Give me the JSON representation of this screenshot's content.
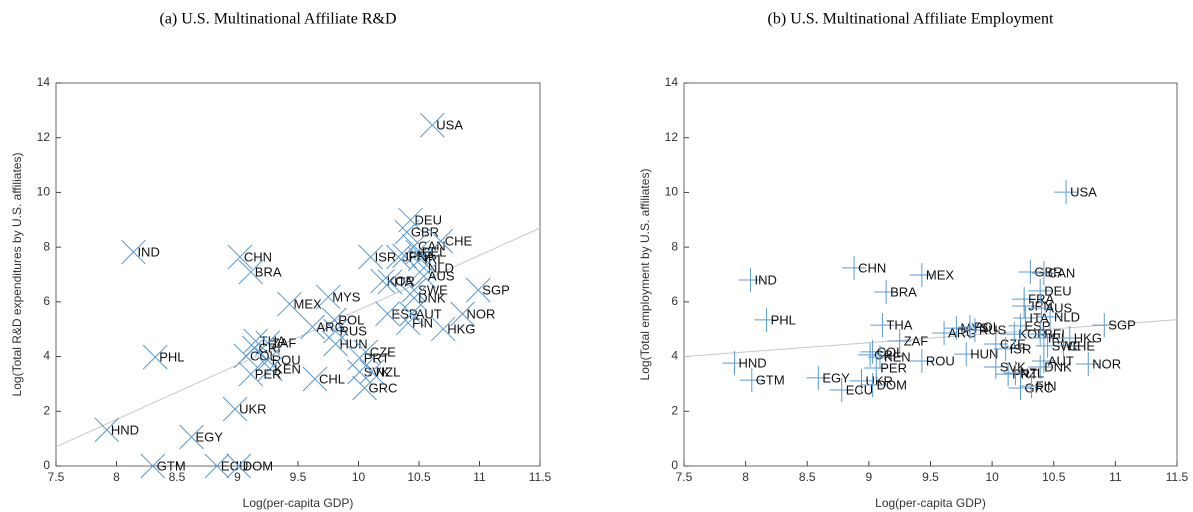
{
  "chart_data": [
    {
      "type": "scatter",
      "title": "(a) U.S. Multinational Affiliate R&D",
      "x_label": "Log(per-capita GDP)",
      "y_label": "Log(Total R&D expenditures by U.S. affiliates)",
      "marker": "x",
      "color": "#5a9ad0",
      "xlim": [
        7.5,
        11.5
      ],
      "xticks": [
        7.5,
        8,
        8.5,
        9,
        9.5,
        10,
        10.5,
        11,
        11.5
      ],
      "ylim": [
        0,
        14
      ],
      "yticks": [
        0,
        2,
        4,
        6,
        8,
        10,
        12,
        14
      ],
      "labels": [
        "USA",
        "IND",
        "CHN",
        "BRA",
        "DEU",
        "GBR",
        "CAN",
        "CHE",
        "BEL",
        "FRA",
        "JPN",
        "ISR",
        "IRL",
        "NLD",
        "AUS",
        "KOR",
        "ITA",
        "SWE",
        "SGP",
        "DNK",
        "MYS",
        "MEX",
        "ESP",
        "AUT",
        "NOR",
        "FIN",
        "HKG",
        "POL",
        "RUS",
        "ARG",
        "THA",
        "ZAF",
        "CRI",
        "HUN",
        "COL",
        "ROU",
        "KEN",
        "PER",
        "CZE",
        "PRT",
        "SVK",
        "NZL",
        "CHL",
        "GRC",
        "PHL",
        "UKR",
        "HND",
        "EGY",
        "GTM",
        "ECU",
        "DOM"
      ],
      "x": [
        10.61,
        8.14,
        9.02,
        9.11,
        10.43,
        10.4,
        10.46,
        10.68,
        10.49,
        10.38,
        10.33,
        10.1,
        10.51,
        10.54,
        10.54,
        10.2,
        10.26,
        10.46,
        10.99,
        10.46,
        9.75,
        9.43,
        10.24,
        10.44,
        10.86,
        10.41,
        10.7,
        9.8,
        9.81,
        9.62,
        9.15,
        9.25,
        9.14,
        9.81,
        9.07,
        9.25,
        9.27,
        9.11,
        10.06,
        10.01,
        10.01,
        10.11,
        9.64,
        10.05,
        8.32,
        8.98,
        7.92,
        8.62,
        8.3,
        8.83,
        9.01
      ],
      "values": [
        12.46,
        7.82,
        7.64,
        7.09,
        8.99,
        8.55,
        8.04,
        8.22,
        7.82,
        7.68,
        7.64,
        7.64,
        7.57,
        7.24,
        6.94,
        6.76,
        6.73,
        6.43,
        6.43,
        6.14,
        6.18,
        5.92,
        5.56,
        5.56,
        5.56,
        5.23,
        5.01,
        5.34,
        4.93,
        5.08,
        4.57,
        4.5,
        4.31,
        4.46,
        4.02,
        3.87,
        3.55,
        3.36,
        4.17,
        3.95,
        3.44,
        3.44,
        3.18,
        2.85,
        3.98,
        2.08,
        1.32,
        1.06,
        0,
        0,
        0
      ],
      "trend": {
        "x": [
          7.5,
          11.5
        ],
        "y": [
          0.7,
          8.7
        ]
      }
    },
    {
      "type": "scatter",
      "title": "(b) U.S. Multinational Affiliate Employment",
      "x_label": "Log(per-capita GDP)",
      "y_label": "Log(Total employment by U.S. affiliates)",
      "marker": "+",
      "color": "#5a9ad0",
      "xlim": [
        7.5,
        11.5
      ],
      "xticks": [
        7.5,
        8,
        8.5,
        9,
        9.5,
        10,
        10.5,
        11,
        11.5
      ],
      "ylim": [
        0,
        14
      ],
      "yticks": [
        0,
        2,
        4,
        6,
        8,
        10,
        12,
        14
      ],
      "labels": [
        "USA",
        "IND",
        "CHN",
        "MEX",
        "BRA",
        "PHL",
        "THA",
        "ZAF",
        "HND",
        "GTM",
        "EGY",
        "UKR",
        "ECU",
        "DOM",
        "COL",
        "CRI",
        "PER",
        "KEN",
        "ROU",
        "ARG",
        "MYS",
        "POL",
        "RUS",
        "HUN",
        "CZE",
        "ISR",
        "SVK",
        "PRT",
        "NZL",
        "GRC",
        "FIN",
        "KOR",
        "ESP",
        "ITA",
        "JPN",
        "AUS",
        "FRA",
        "DEU",
        "GBR",
        "CAN",
        "NLD",
        "BEL",
        "IRL",
        "HKG",
        "SGP",
        "CHE",
        "SWE",
        "AUT",
        "DNK",
        "NOR"
      ],
      "x": [
        10.6,
        8.04,
        8.88,
        9.43,
        9.14,
        8.17,
        9.11,
        9.25,
        7.91,
        8.05,
        8.59,
        8.94,
        8.78,
        9.03,
        9.03,
        9.01,
        9.06,
        9.09,
        9.43,
        9.61,
        9.71,
        9.82,
        9.86,
        9.79,
        10.03,
        10.11,
        10.03,
        10.13,
        10.19,
        10.23,
        10.32,
        10.18,
        10.23,
        10.27,
        10.26,
        10.4,
        10.26,
        10.39,
        10.31,
        10.42,
        10.47,
        10.39,
        10.42,
        10.63,
        10.91,
        10.58,
        10.45,
        10.42,
        10.39,
        10.78
      ],
      "values": [
        10.01,
        6.8,
        7.24,
        6.98,
        6.36,
        5.34,
        5.15,
        4.57,
        3.76,
        3.14,
        3.22,
        3.11,
        2.78,
        2.96,
        4.17,
        4.06,
        3.58,
        3.98,
        3.84,
        4.86,
        5.04,
        5.08,
        4.97,
        4.09,
        4.46,
        4.28,
        3.62,
        3.36,
        3.4,
        2.85,
        2.92,
        4.82,
        5.12,
        5.41,
        5.85,
        5.77,
        6.1,
        6.4,
        7.09,
        7.05,
        5.45,
        4.82,
        4.68,
        4.68,
        5.15,
        4.39,
        4.39,
        3.84,
        3.62,
        3.73
      ],
      "trend": {
        "x": [
          7.5,
          11.5
        ],
        "y": [
          4.0,
          5.35
        ]
      }
    }
  ]
}
